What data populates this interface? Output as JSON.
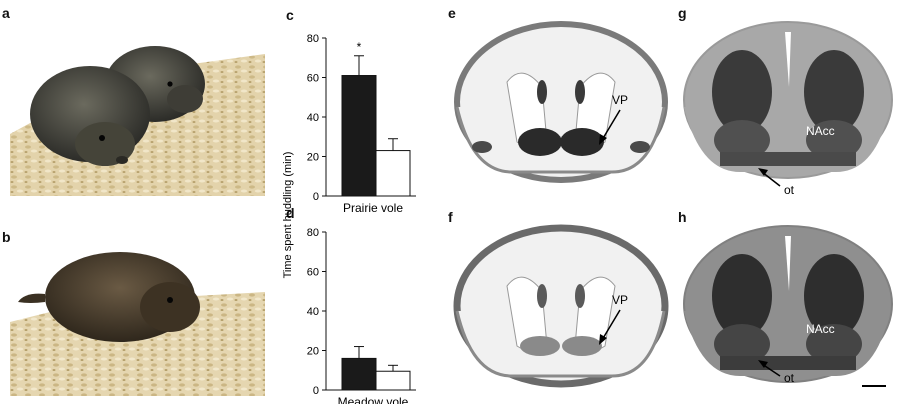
{
  "figure": {
    "letters": {
      "a": "a",
      "b": "b",
      "c": "c",
      "d": "d",
      "e": "e",
      "f": "f",
      "g": "g",
      "h": "h"
    },
    "photos": [
      {
        "id": "a",
        "subject": "two prairie voles on wood-chip bedding"
      },
      {
        "id": "b",
        "subject": "single meadow vole on wood-chip bedding"
      }
    ],
    "brain_sections": {
      "e": {
        "label": "VP"
      },
      "f": {
        "label": "VP"
      },
      "g": {
        "label_nacc": "NAcc",
        "label_ot": "ot"
      },
      "h": {
        "label_nacc": "NAcc",
        "label_ot": "ot"
      }
    },
    "colors": {
      "bar_filled": "#1a1a1a",
      "bar_open": "#ffffff",
      "axis": "#111111"
    }
  },
  "chart_data": [
    {
      "panel": "c",
      "type": "bar",
      "xlabel": "Prairie vole",
      "ylabel": "Time spent huddling (min)",
      "ylim": [
        0,
        80
      ],
      "yticks": [
        "0",
        "20",
        "40",
        "60",
        "80"
      ],
      "categories": [
        "",
        ""
      ],
      "values": [
        61,
        23
      ],
      "errors": [
        10,
        6
      ],
      "bar_styles": [
        "filled",
        "open"
      ],
      "annotation": "*"
    },
    {
      "panel": "d",
      "type": "bar",
      "xlabel": "Meadow vole",
      "ylabel": "",
      "ylim": [
        0,
        80
      ],
      "yticks": [
        "0",
        "20",
        "40",
        "60",
        "80"
      ],
      "categories": [
        "",
        ""
      ],
      "values": [
        16,
        9.5
      ],
      "errors": [
        6,
        3
      ],
      "bar_styles": [
        "filled",
        "open"
      ],
      "annotation": ""
    }
  ]
}
